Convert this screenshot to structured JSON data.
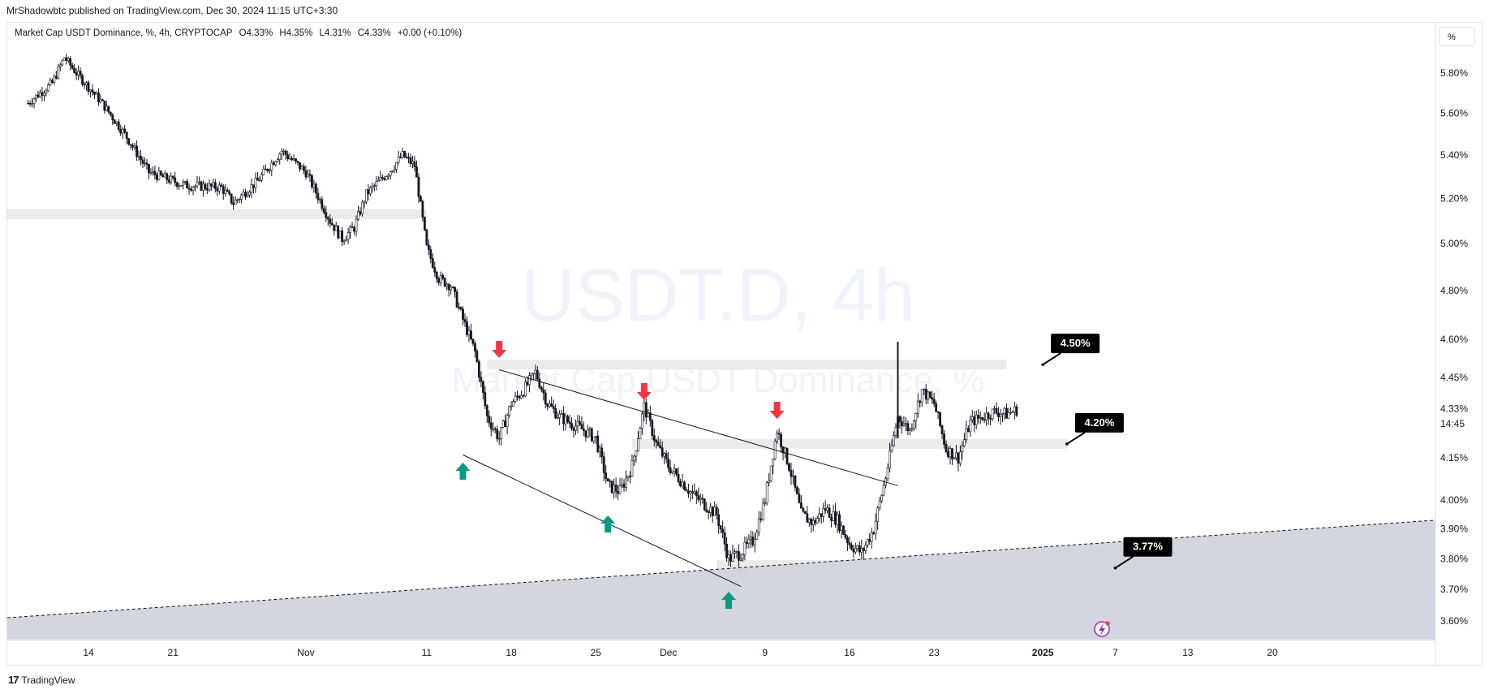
{
  "publisher_line": "MrShadowbtc published on TradingView.com, Dec 30, 2024 11:15 UTC+3:30",
  "legend": {
    "symbol": "Market Cap USDT Dominance, %, 4h, CRYPTOCAP",
    "open": "O4.33%",
    "high": "H4.35%",
    "low": "L4.31%",
    "close": "C4.33%",
    "change": "+0.00 (+0.10%)"
  },
  "unit_button": "%",
  "watermark": {
    "symbol": "USDT.D, 4h",
    "description": "Market Cap USDT Dominance, %"
  },
  "footer": {
    "brand": "TradingView",
    "logo_mark": "17"
  },
  "colors": {
    "up": "#089981",
    "down": "#f23645",
    "candle": "#131722",
    "zone": "#d1d4dc",
    "callout_bg": "#000000"
  },
  "chart_data": {
    "type": "candlestick",
    "y_axis": {
      "scale": "log",
      "unit": "%",
      "ticks": [
        "5.80%",
        "5.60%",
        "5.40%",
        "5.20%",
        "5.00%",
        "4.80%",
        "4.60%",
        "4.45%",
        "4.15%",
        "4.00%",
        "3.90%",
        "3.80%",
        "3.70%",
        "3.60%"
      ],
      "range": [
        3.57,
        5.97
      ]
    },
    "x_axis": {
      "ticks": [
        "14",
        "21",
        "Nov",
        "11",
        "18",
        "25",
        "Dec",
        "9",
        "16",
        "23",
        "2025",
        "7",
        "13",
        "20"
      ]
    },
    "current_price": {
      "value": "4.33%",
      "countdown": "14:45"
    },
    "series": [
      {
        "name": "USDT.D",
        "close_path": [
          [
            "Oct 9",
            5.65
          ],
          [
            "Oct 11",
            5.75
          ],
          [
            "Oct 12",
            5.88
          ],
          [
            "Oct 13",
            5.8
          ],
          [
            "Oct 15",
            5.66
          ],
          [
            "Oct 17",
            5.5
          ],
          [
            "Oct 19",
            5.32
          ],
          [
            "Oct 22",
            5.26
          ],
          [
            "Oct 25",
            5.25
          ],
          [
            "Oct 26",
            5.18
          ],
          [
            "Oct 28",
            5.28
          ],
          [
            "Oct 30",
            5.42
          ],
          [
            "Nov 1",
            5.32
          ],
          [
            "Nov 3",
            5.1
          ],
          [
            "Nov 4",
            5.02
          ],
          [
            "Nov 5",
            5.07
          ],
          [
            "Nov 6",
            5.22
          ],
          [
            "Nov 8",
            5.33
          ],
          [
            "Nov 9",
            5.4
          ],
          [
            "Nov 10",
            5.35
          ],
          [
            "Nov 11",
            4.98
          ],
          [
            "Nov 12",
            4.85
          ],
          [
            "Nov 13",
            4.82
          ],
          [
            "Nov 14",
            4.68
          ],
          [
            "Nov 15",
            4.55
          ],
          [
            "Nov 16",
            4.3
          ],
          [
            "Nov 17",
            4.22
          ],
          [
            "Nov 18",
            4.35
          ],
          [
            "Nov 19",
            4.4
          ],
          [
            "Nov 20",
            4.47
          ],
          [
            "Nov 21",
            4.35
          ],
          [
            "Nov 22",
            4.3
          ],
          [
            "Nov 24",
            4.25
          ],
          [
            "Nov 25",
            4.22
          ],
          [
            "Nov 26",
            4.05
          ],
          [
            "Nov 27",
            4.03
          ],
          [
            "Nov 28",
            4.12
          ],
          [
            "Nov 29",
            4.34
          ],
          [
            "Nov 30",
            4.2
          ],
          [
            "Dec 1",
            4.12
          ],
          [
            "Dec 3",
            4.02
          ],
          [
            "Dec 5",
            3.95
          ],
          [
            "Dec 6",
            3.8
          ],
          [
            "Dec 7",
            3.82
          ],
          [
            "Dec 8",
            3.86
          ],
          [
            "Dec 9",
            4.0
          ],
          [
            "Dec 10",
            4.25
          ],
          [
            "Dec 11",
            4.12
          ],
          [
            "Dec 12",
            3.95
          ],
          [
            "Dec 13",
            3.92
          ],
          [
            "Dec 14",
            3.97
          ],
          [
            "Dec 15",
            3.93
          ],
          [
            "Dec 16",
            3.85
          ],
          [
            "Dec 17",
            3.82
          ],
          [
            "Dec 18",
            3.9
          ],
          [
            "Dec 19",
            4.08
          ],
          [
            "Dec 20",
            4.3
          ],
          [
            "Dec 21",
            4.25
          ],
          [
            "Dec 22",
            4.4
          ],
          [
            "Dec 23",
            4.35
          ],
          [
            "Dec 24",
            4.18
          ],
          [
            "Dec 25",
            4.15
          ],
          [
            "Dec 26",
            4.28
          ],
          [
            "Dec 27",
            4.3
          ],
          [
            "Dec 28",
            4.32
          ],
          [
            "Dec 29",
            4.31
          ],
          [
            "Dec 30",
            4.33
          ]
        ]
      }
    ],
    "annotations": {
      "callouts": [
        "4.50%",
        "4.20%",
        "3.77%"
      ],
      "falling_wedge": {
        "upper": [
          [
            "Nov 17",
            4.48
          ],
          [
            "Dec 20",
            4.05
          ]
        ],
        "lower": [
          [
            "Nov 14",
            4.16
          ],
          [
            "Dec 7",
            3.71
          ]
        ]
      },
      "ascending_support": [
        [
          "Oct 8",
          3.61
        ],
        [
          "Jan 24",
          3.93
        ]
      ],
      "horizontal_zones": [
        4.5,
        4.2,
        5.13,
        3.78
      ],
      "up_arrows": [
        "Nov 14",
        "Nov 26",
        "Dec 6"
      ],
      "down_arrows": [
        "Nov 17",
        "Nov 29",
        "Dec 10"
      ]
    },
    "legend_placement": "top-left",
    "grid": false
  }
}
